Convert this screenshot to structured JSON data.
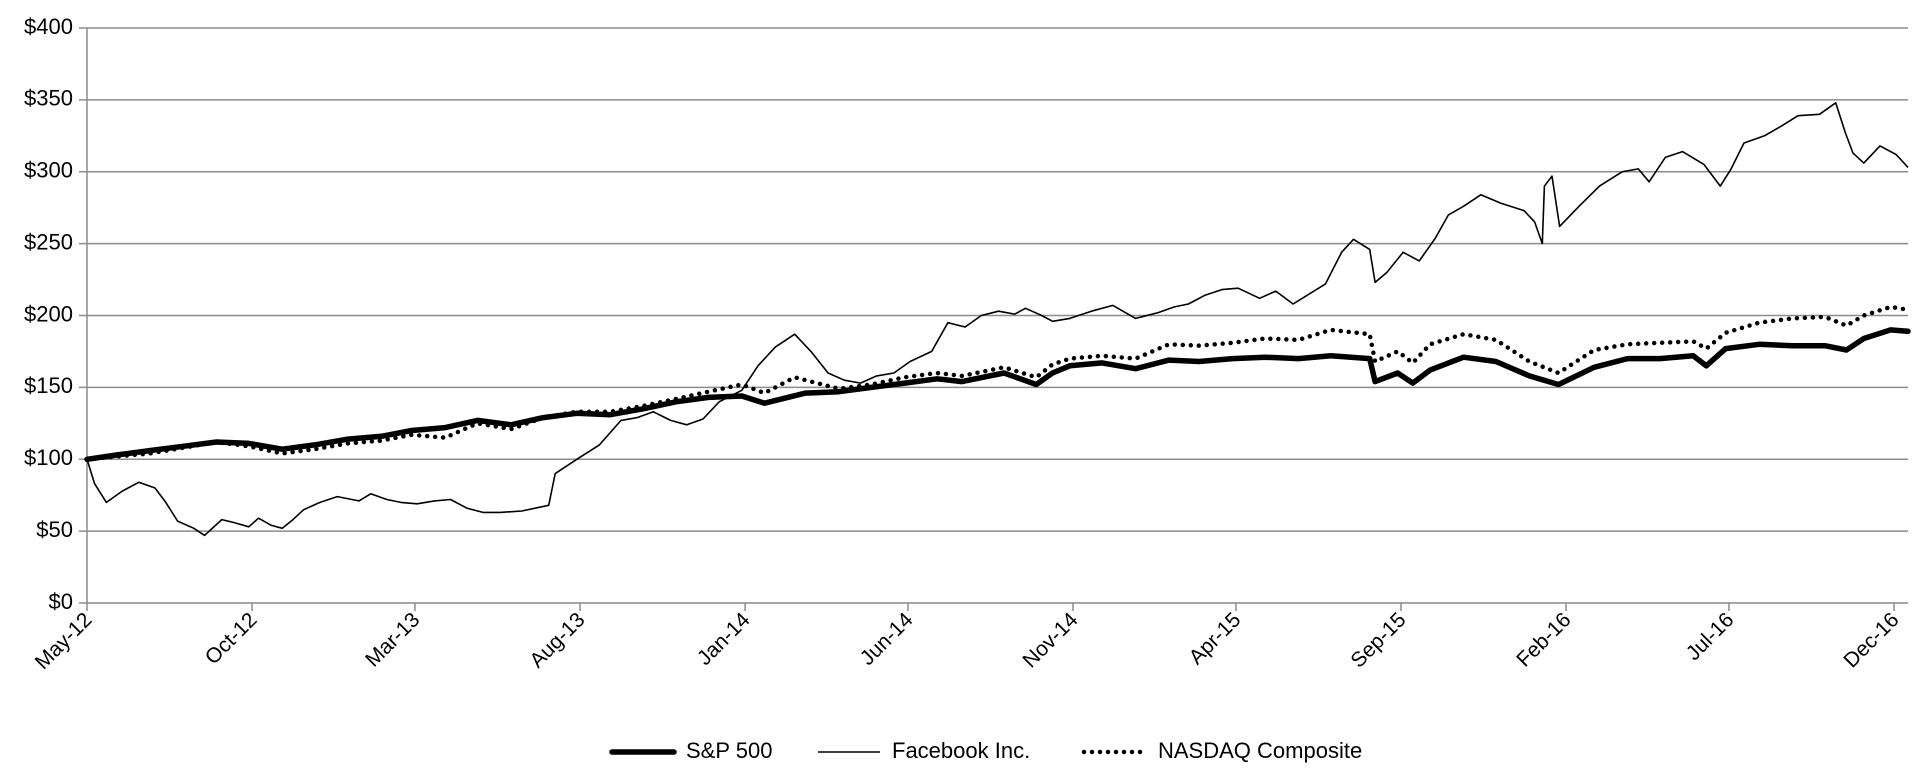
{
  "chart_data": {
    "type": "line",
    "title": "",
    "xlabel": "",
    "ylabel": "",
    "ylim": [
      0,
      400
    ],
    "yticks": [
      0,
      50,
      100,
      150,
      200,
      250,
      300,
      350,
      400
    ],
    "ytick_labels": [
      "$0",
      "$50",
      "$100",
      "$150",
      "$200",
      "$250",
      "$300",
      "$350",
      "$400"
    ],
    "xlim": [
      "2012-05-18",
      "2016-12-31"
    ],
    "xticks": [
      "2012-05-18",
      "2012-10-18",
      "2013-03-18",
      "2013-08-18",
      "2014-01-18",
      "2014-06-18",
      "2014-11-18",
      "2015-04-18",
      "2015-09-18",
      "2016-02-18",
      "2016-07-18",
      "2016-12-18"
    ],
    "xtick_labels": [
      "May-12",
      "Oct-12",
      "Mar-13",
      "Aug-13",
      "Jan-14",
      "Jun-14",
      "Nov-14",
      "Apr-15",
      "Sep-15",
      "Feb-16",
      "Jul-16",
      "Dec-16"
    ],
    "grid": "horizontal",
    "legend_position": "bottom",
    "series": [
      {
        "name": "S&P 500",
        "style": "thick-solid",
        "color": "#000000",
        "points": [
          [
            "2012-05-18",
            100
          ],
          [
            "2012-06-15",
            103
          ],
          [
            "2012-07-15",
            106
          ],
          [
            "2012-08-15",
            109
          ],
          [
            "2012-09-15",
            112
          ],
          [
            "2012-10-15",
            111
          ],
          [
            "2012-11-15",
            107
          ],
          [
            "2012-12-15",
            110
          ],
          [
            "2013-01-15",
            114
          ],
          [
            "2013-02-15",
            116
          ],
          [
            "2013-03-15",
            120
          ],
          [
            "2013-04-15",
            122
          ],
          [
            "2013-05-15",
            127
          ],
          [
            "2013-06-15",
            124
          ],
          [
            "2013-07-15",
            129
          ],
          [
            "2013-08-15",
            132
          ],
          [
            "2013-09-15",
            131
          ],
          [
            "2013-10-15",
            135
          ],
          [
            "2013-11-15",
            140
          ],
          [
            "2013-12-15",
            143
          ],
          [
            "2014-01-15",
            144
          ],
          [
            "2014-02-05",
            139
          ],
          [
            "2014-03-15",
            146
          ],
          [
            "2014-04-15",
            147
          ],
          [
            "2014-05-15",
            150
          ],
          [
            "2014-06-15",
            153
          ],
          [
            "2014-07-15",
            156
          ],
          [
            "2014-08-07",
            154
          ],
          [
            "2014-09-15",
            160
          ],
          [
            "2014-10-15",
            152
          ],
          [
            "2014-10-30",
            160
          ],
          [
            "2014-11-15",
            165
          ],
          [
            "2014-12-15",
            167
          ],
          [
            "2015-01-15",
            163
          ],
          [
            "2015-02-15",
            169
          ],
          [
            "2015-03-15",
            168
          ],
          [
            "2015-04-15",
            170
          ],
          [
            "2015-05-15",
            171
          ],
          [
            "2015-06-15",
            170
          ],
          [
            "2015-07-15",
            172
          ],
          [
            "2015-08-20",
            170
          ],
          [
            "2015-08-25",
            154
          ],
          [
            "2015-09-15",
            160
          ],
          [
            "2015-09-29",
            153
          ],
          [
            "2015-10-15",
            162
          ],
          [
            "2015-11-15",
            171
          ],
          [
            "2015-12-15",
            168
          ],
          [
            "2016-01-15",
            158
          ],
          [
            "2016-02-11",
            152
          ],
          [
            "2016-03-15",
            164
          ],
          [
            "2016-04-15",
            170
          ],
          [
            "2016-05-15",
            170
          ],
          [
            "2016-06-15",
            172
          ],
          [
            "2016-06-27",
            165
          ],
          [
            "2016-07-15",
            177
          ],
          [
            "2016-08-15",
            180
          ],
          [
            "2016-09-15",
            179
          ],
          [
            "2016-10-15",
            179
          ],
          [
            "2016-11-04",
            176
          ],
          [
            "2016-11-20",
            184
          ],
          [
            "2016-12-15",
            190
          ],
          [
            "2016-12-31",
            189
          ]
        ]
      },
      {
        "name": "Facebook Inc.",
        "style": "thin-solid",
        "color": "#000000",
        "points": [
          [
            "2012-05-18",
            100
          ],
          [
            "2012-05-25",
            83
          ],
          [
            "2012-06-05",
            70
          ],
          [
            "2012-06-20",
            78
          ],
          [
            "2012-07-05",
            84
          ],
          [
            "2012-07-20",
            80
          ],
          [
            "2012-07-30",
            70
          ],
          [
            "2012-08-10",
            57
          ],
          [
            "2012-08-25",
            52
          ],
          [
            "2012-09-04",
            47
          ],
          [
            "2012-09-20",
            58
          ],
          [
            "2012-10-01",
            56
          ],
          [
            "2012-10-15",
            53
          ],
          [
            "2012-10-24",
            59
          ],
          [
            "2012-11-05",
            54
          ],
          [
            "2012-11-15",
            52
          ],
          [
            "2012-11-25",
            58
          ],
          [
            "2012-12-05",
            65
          ],
          [
            "2012-12-20",
            70
          ],
          [
            "2013-01-05",
            74
          ],
          [
            "2013-01-25",
            71
          ],
          [
            "2013-02-05",
            76
          ],
          [
            "2013-02-20",
            72
          ],
          [
            "2013-03-05",
            70
          ],
          [
            "2013-03-20",
            69
          ],
          [
            "2013-04-05",
            71
          ],
          [
            "2013-04-20",
            72
          ],
          [
            "2013-05-05",
            66
          ],
          [
            "2013-05-20",
            63
          ],
          [
            "2013-06-05",
            63
          ],
          [
            "2013-06-25",
            64
          ],
          [
            "2013-07-20",
            68
          ],
          [
            "2013-07-26",
            90
          ],
          [
            "2013-08-15",
            100
          ],
          [
            "2013-09-05",
            110
          ],
          [
            "2013-09-25",
            127
          ],
          [
            "2013-10-10",
            129
          ],
          [
            "2013-10-25",
            133
          ],
          [
            "2013-11-10",
            127
          ],
          [
            "2013-11-25",
            124
          ],
          [
            "2013-12-10",
            128
          ],
          [
            "2013-12-25",
            140
          ],
          [
            "2014-01-15",
            148
          ],
          [
            "2014-01-30",
            165
          ],
          [
            "2014-02-15",
            178
          ],
          [
            "2014-03-05",
            187
          ],
          [
            "2014-03-20",
            175
          ],
          [
            "2014-04-05",
            160
          ],
          [
            "2014-04-20",
            155
          ],
          [
            "2014-05-05",
            153
          ],
          [
            "2014-05-20",
            158
          ],
          [
            "2014-06-05",
            160
          ],
          [
            "2014-06-20",
            168
          ],
          [
            "2014-07-10",
            175
          ],
          [
            "2014-07-25",
            195
          ],
          [
            "2014-08-10",
            192
          ],
          [
            "2014-08-25",
            200
          ],
          [
            "2014-09-10",
            203
          ],
          [
            "2014-09-25",
            201
          ],
          [
            "2014-10-05",
            205
          ],
          [
            "2014-10-20",
            200
          ],
          [
            "2014-10-30",
            196
          ],
          [
            "2014-11-15",
            198
          ],
          [
            "2014-12-05",
            203
          ],
          [
            "2014-12-25",
            207
          ],
          [
            "2015-01-15",
            198
          ],
          [
            "2015-02-05",
            202
          ],
          [
            "2015-02-20",
            206
          ],
          [
            "2015-03-05",
            208
          ],
          [
            "2015-03-20",
            214
          ],
          [
            "2015-04-05",
            218
          ],
          [
            "2015-04-20",
            219
          ],
          [
            "2015-05-10",
            212
          ],
          [
            "2015-05-25",
            217
          ],
          [
            "2015-06-10",
            208
          ],
          [
            "2015-06-25",
            215
          ],
          [
            "2015-07-10",
            222
          ],
          [
            "2015-07-25",
            244
          ],
          [
            "2015-08-05",
            253
          ],
          [
            "2015-08-20",
            246
          ],
          [
            "2015-08-25",
            223
          ],
          [
            "2015-09-05",
            230
          ],
          [
            "2015-09-20",
            244
          ],
          [
            "2015-10-05",
            238
          ],
          [
            "2015-10-20",
            254
          ],
          [
            "2015-11-01",
            270
          ],
          [
            "2015-11-15",
            276
          ],
          [
            "2015-12-01",
            284
          ],
          [
            "2015-12-20",
            278
          ],
          [
            "2016-01-10",
            273
          ],
          [
            "2016-01-20",
            265
          ],
          [
            "2016-01-27",
            250
          ],
          [
            "2016-01-29",
            290
          ],
          [
            "2016-02-05",
            297
          ],
          [
            "2016-02-12",
            262
          ],
          [
            "2016-03-01",
            276
          ],
          [
            "2016-03-20",
            290
          ],
          [
            "2016-04-10",
            300
          ],
          [
            "2016-04-25",
            302
          ],
          [
            "2016-05-05",
            293
          ],
          [
            "2016-05-20",
            310
          ],
          [
            "2016-06-05",
            314
          ],
          [
            "2016-06-25",
            305
          ],
          [
            "2016-07-10",
            290
          ],
          [
            "2016-07-20",
            302
          ],
          [
            "2016-08-01",
            320
          ],
          [
            "2016-08-20",
            325
          ],
          [
            "2016-09-05",
            332
          ],
          [
            "2016-09-20",
            339
          ],
          [
            "2016-10-10",
            340
          ],
          [
            "2016-10-25",
            348
          ],
          [
            "2016-11-03",
            327
          ],
          [
            "2016-11-10",
            313
          ],
          [
            "2016-11-20",
            306
          ],
          [
            "2016-12-05",
            318
          ],
          [
            "2016-12-20",
            312
          ],
          [
            "2016-12-31",
            303
          ]
        ]
      },
      {
        "name": "NASDAQ Composite",
        "style": "dotted",
        "color": "#000000",
        "points": [
          [
            "2012-05-18",
            100
          ],
          [
            "2012-06-15",
            102
          ],
          [
            "2012-07-15",
            104
          ],
          [
            "2012-08-15",
            108
          ],
          [
            "2012-09-15",
            112
          ],
          [
            "2012-10-15",
            109
          ],
          [
            "2012-11-15",
            104
          ],
          [
            "2012-12-15",
            107
          ],
          [
            "2013-01-15",
            111
          ],
          [
            "2013-02-15",
            113
          ],
          [
            "2013-03-15",
            117
          ],
          [
            "2013-04-15",
            115
          ],
          [
            "2013-05-15",
            125
          ],
          [
            "2013-06-15",
            121
          ],
          [
            "2013-07-15",
            129
          ],
          [
            "2013-08-15",
            133
          ],
          [
            "2013-09-15",
            133
          ],
          [
            "2013-10-15",
            137
          ],
          [
            "2013-11-15",
            142
          ],
          [
            "2013-12-15",
            147
          ],
          [
            "2014-01-15",
            152
          ],
          [
            "2014-02-05",
            146
          ],
          [
            "2014-03-05",
            157
          ],
          [
            "2014-04-15",
            149
          ],
          [
            "2014-05-15",
            152
          ],
          [
            "2014-06-15",
            157
          ],
          [
            "2014-07-15",
            160
          ],
          [
            "2014-08-07",
            158
          ],
          [
            "2014-09-15",
            164
          ],
          [
            "2014-10-15",
            157
          ],
          [
            "2014-10-30",
            166
          ],
          [
            "2014-11-15",
            170
          ],
          [
            "2014-12-15",
            172
          ],
          [
            "2015-01-15",
            170
          ],
          [
            "2015-02-15",
            180
          ],
          [
            "2015-03-15",
            179
          ],
          [
            "2015-04-15",
            181
          ],
          [
            "2015-05-15",
            184
          ],
          [
            "2015-06-15",
            183
          ],
          [
            "2015-07-15",
            190
          ],
          [
            "2015-08-20",
            187
          ],
          [
            "2015-08-25",
            168
          ],
          [
            "2015-09-15",
            175
          ],
          [
            "2015-09-29",
            167
          ],
          [
            "2015-10-15",
            180
          ],
          [
            "2015-11-15",
            187
          ],
          [
            "2015-12-15",
            183
          ],
          [
            "2016-01-15",
            168
          ],
          [
            "2016-02-11",
            160
          ],
          [
            "2016-03-15",
            176
          ],
          [
            "2016-04-15",
            180
          ],
          [
            "2016-05-15",
            181
          ],
          [
            "2016-06-15",
            182
          ],
          [
            "2016-06-27",
            177
          ],
          [
            "2016-07-15",
            188
          ],
          [
            "2016-08-15",
            195
          ],
          [
            "2016-09-15",
            198
          ],
          [
            "2016-10-15",
            199
          ],
          [
            "2016-11-04",
            193
          ],
          [
            "2016-11-20",
            200
          ],
          [
            "2016-12-15",
            206
          ],
          [
            "2016-12-31",
            204
          ]
        ]
      }
    ]
  }
}
